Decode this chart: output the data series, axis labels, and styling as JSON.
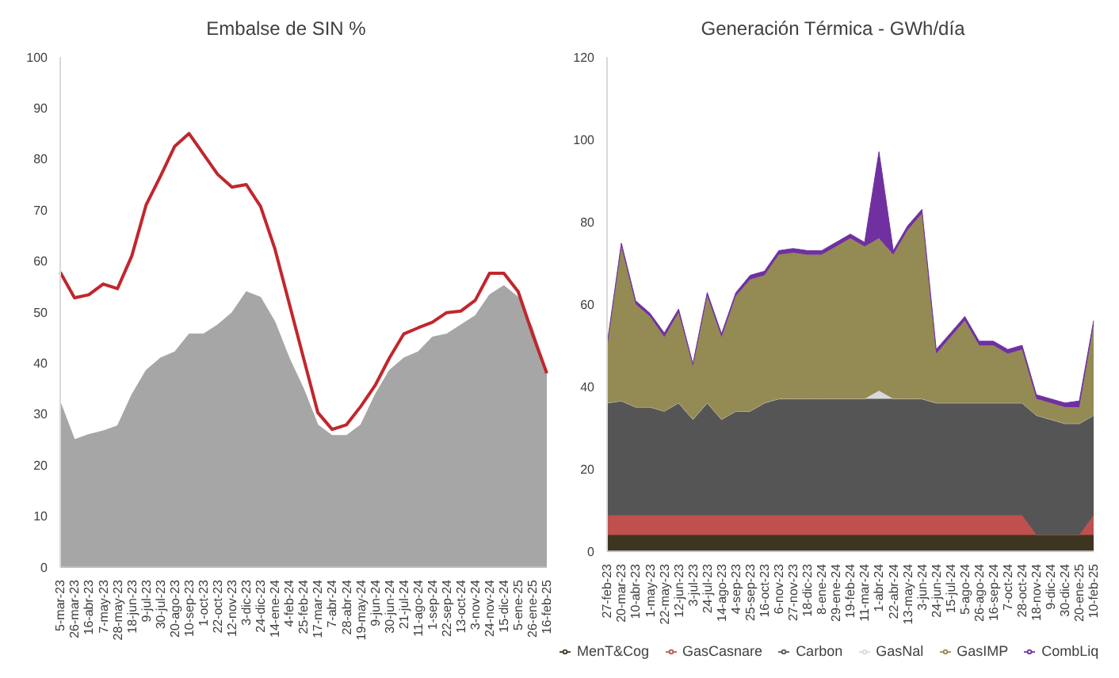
{
  "chart_data": [
    {
      "type": "area",
      "title": "Embalse de SIN %",
      "categories": [
        "5-mar-23",
        "26-mar-23",
        "16-abr-23",
        "7-may-23",
        "28-may-23",
        "18-jun-23",
        "9-jul-23",
        "30-jul-23",
        "20-ago-23",
        "10-sep-23",
        "1-oct-23",
        "22-oct-23",
        "12-nov-23",
        "3-dic-23",
        "24-dic-23",
        "14-ene-24",
        "4-feb-24",
        "25-feb-24",
        "17-mar-24",
        "7-abr-24",
        "28-abr-24",
        "19-may-24",
        "9-jun-24",
        "30-jun-24",
        "21-jul-24",
        "11-ago-24",
        "1-sep-24",
        "22-sep-24",
        "13-oct-24",
        "3-nov-24",
        "24-nov-24",
        "15-dic-24",
        "5-ene-25",
        "26-ene-25",
        "16-feb-25"
      ],
      "series": [
        {
          "color": "#a6a6a6",
          "values": [
            32.4,
            25,
            26,
            26.7,
            27.7,
            33.8,
            38.6,
            41,
            42.2,
            45.7,
            45.7,
            47.5,
            49.9,
            54,
            52.9,
            48.1,
            41,
            35,
            27.9,
            25.8,
            25.8,
            27.9,
            33.8,
            38.6,
            41,
            42.2,
            45.1,
            45.7,
            47.5,
            49.3,
            53.4,
            55.2,
            52.9,
            46.9,
            38
          ]
        },
        {
          "type": "line",
          "color": "#c0272d",
          "values": [
            57.8,
            52.8,
            53.4,
            55.5,
            54.6,
            61,
            71,
            76.6,
            82.5,
            85,
            81,
            77,
            74.5,
            75,
            70.7,
            62.4,
            51.7,
            41,
            30.3,
            27,
            27.9,
            31.5,
            35.6,
            41,
            45.7,
            46.9,
            48,
            49.9,
            50.2,
            52.3,
            57.6,
            57.6,
            54,
            45.7,
            38
          ]
        }
      ],
      "ylim": [
        0,
        100
      ],
      "yticks": [
        0,
        10,
        20,
        30,
        40,
        50,
        60,
        70,
        80,
        90,
        100
      ],
      "grid": false,
      "legend": false
    },
    {
      "type": "area",
      "title": "Generación Térmica - GWh/día",
      "stacked": true,
      "categories": [
        "27-feb-23",
        "20-mar-23",
        "10-abr-23",
        "1-may-23",
        "22-may-23",
        "12-jun-23",
        "3-jul-23",
        "24-jul-23",
        "14-ago-23",
        "4-sep-23",
        "25-sep-23",
        "16-oct-23",
        "6-nov-23",
        "27-nov-23",
        "18-dic-23",
        "8-ene-24",
        "29-ene-24",
        "19-feb-24",
        "11-mar-24",
        "1-abr-24",
        "22-abr-24",
        "13-may-24",
        "3-jun-24",
        "24-jun-24",
        "15-jul-24",
        "5-ago-24",
        "26-ago-24",
        "16-sep-24",
        "7-oct-24",
        "28-oct-24",
        "18-nov-24",
        "9-dic-24",
        "30-dic-24",
        "20-ene-25",
        "10-feb-25"
      ],
      "series": [
        {
          "name": "MenT&Cog",
          "color": "#3d3520",
          "values": [
            4,
            4,
            4,
            4,
            4,
            4,
            4,
            4,
            4,
            4,
            4,
            4,
            4,
            4,
            4,
            4,
            4,
            4,
            4,
            4,
            4,
            4,
            4,
            4,
            4,
            4,
            4,
            4,
            4,
            4,
            4,
            4,
            4,
            4,
            4
          ]
        },
        {
          "name": "GasCasnare",
          "color": "#c0504d",
          "values": [
            4.7,
            4.7,
            4.7,
            4.7,
            4.7,
            4.7,
            4.7,
            4.7,
            4.7,
            4.7,
            4.7,
            4.7,
            4.7,
            4.7,
            4.7,
            4.7,
            4.7,
            4.7,
            4.7,
            4.7,
            4.7,
            4.7,
            4.7,
            4.7,
            4.7,
            4.7,
            4.7,
            4.7,
            4.7,
            4.7,
            0,
            0,
            0,
            0,
            4.7
          ]
        },
        {
          "name": "Carbon",
          "color": "#555555",
          "values": [
            27.3,
            27.8,
            26.3,
            26.3,
            25.3,
            27.3,
            23.3,
            27.3,
            23.3,
            25.3,
            25.3,
            27.3,
            28.3,
            28.3,
            28.3,
            28.3,
            28.3,
            28.3,
            28.3,
            28.3,
            28.3,
            28.3,
            28.3,
            27.3,
            27.3,
            27.3,
            27.3,
            27.3,
            27.3,
            27.3,
            29,
            28,
            27,
            27,
            24.3
          ]
        },
        {
          "name": "GasNal",
          "color": "#d9d9d9",
          "values": [
            0,
            0,
            0,
            0,
            0,
            0,
            0,
            0,
            0,
            0,
            0,
            0,
            0,
            0,
            0,
            0,
            0,
            0,
            0,
            2,
            0,
            0,
            0,
            0,
            0,
            0,
            0,
            0,
            0,
            0,
            0,
            0,
            0,
            0,
            0
          ]
        },
        {
          "name": "GasIMP",
          "color": "#948a54",
          "values": [
            14,
            37.5,
            25,
            22,
            18,
            22,
            13,
            26,
            20,
            28,
            32,
            31,
            35,
            35.5,
            35,
            35,
            37,
            39,
            37,
            37,
            35,
            41,
            45,
            12,
            16,
            20,
            14,
            14,
            12,
            13,
            4,
            4,
            4,
            4,
            22
          ]
        },
        {
          "name": "CombLiq",
          "color": "#7030a0",
          "values": [
            0,
            0.8,
            0.8,
            0.8,
            1,
            0.8,
            0.5,
            0.8,
            0.8,
            0.8,
            1,
            1,
            1,
            1,
            1,
            1,
            1,
            1,
            1,
            21,
            1,
            1,
            1,
            1,
            1,
            1,
            1,
            1,
            1,
            1,
            1,
            1,
            1,
            1.5,
            1
          ]
        }
      ],
      "ylim": [
        0,
        120
      ],
      "yticks": [
        0,
        20,
        40,
        60,
        80,
        100,
        120
      ],
      "grid": false,
      "legend": "bottom"
    }
  ]
}
